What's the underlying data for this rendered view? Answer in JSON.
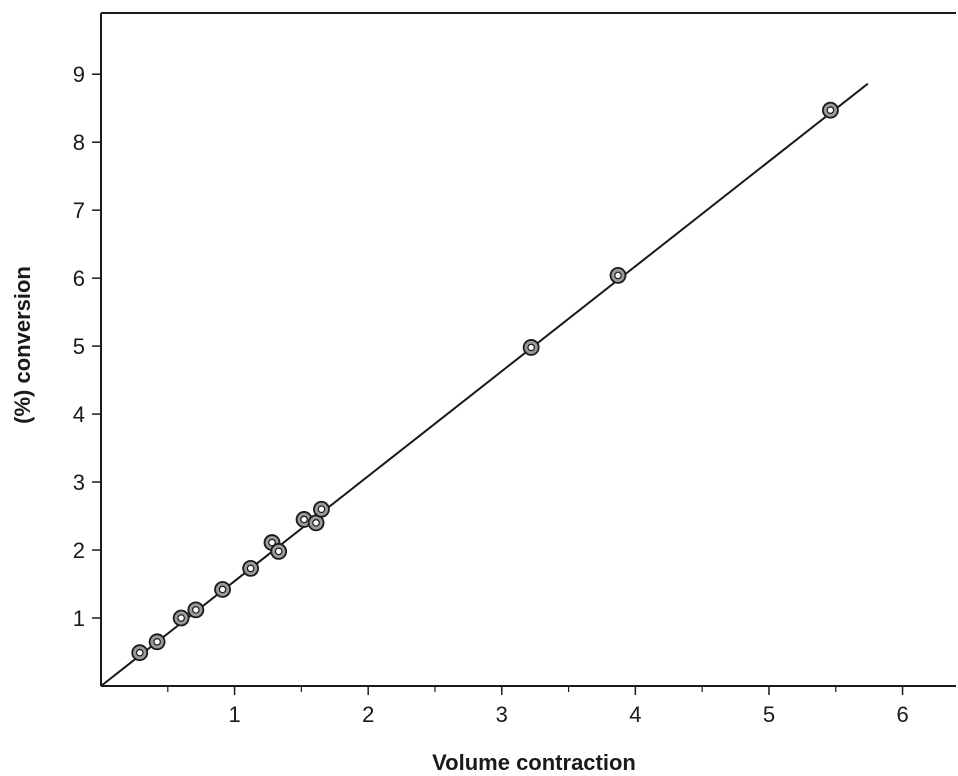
{
  "chart_data": {
    "type": "scatter",
    "title": "",
    "xlabel": "Volume contraction",
    "ylabel": "(%) conversion",
    "xlim": [
      0,
      6.4
    ],
    "ylim": [
      0,
      9.9
    ],
    "x_ticks": [
      1,
      2,
      3,
      4,
      5,
      6
    ],
    "x_minor_ticks": [
      0.5,
      1.5,
      2.5,
      3.5,
      4.5,
      5.5
    ],
    "y_ticks": [
      1,
      2,
      3,
      4,
      5,
      6,
      7,
      8,
      9
    ],
    "grid": false,
    "legend": "none",
    "series": [
      {
        "points": [
          {
            "x": 0.29,
            "y": 0.49
          },
          {
            "x": 0.42,
            "y": 0.65
          },
          {
            "x": 0.6,
            "y": 1.0
          },
          {
            "x": 0.71,
            "y": 1.12
          },
          {
            "x": 0.91,
            "y": 1.42
          },
          {
            "x": 1.12,
            "y": 1.73
          },
          {
            "x": 1.28,
            "y": 2.11
          },
          {
            "x": 1.33,
            "y": 1.98
          },
          {
            "x": 1.52,
            "y": 2.45
          },
          {
            "x": 1.61,
            "y": 2.4
          },
          {
            "x": 1.65,
            "y": 2.6
          },
          {
            "x": 3.22,
            "y": 4.98
          },
          {
            "x": 3.87,
            "y": 6.04
          },
          {
            "x": 5.46,
            "y": 8.47
          }
        ],
        "fit_line": {
          "x_start": 0.0,
          "y_start": 0.0,
          "x_end": 5.74,
          "y_end": 8.86
        }
      }
    ],
    "colors": {
      "marker_fill": "#9a9a9a",
      "marker_stroke": "#1a1a1a",
      "line": "#1a1a1a"
    }
  }
}
